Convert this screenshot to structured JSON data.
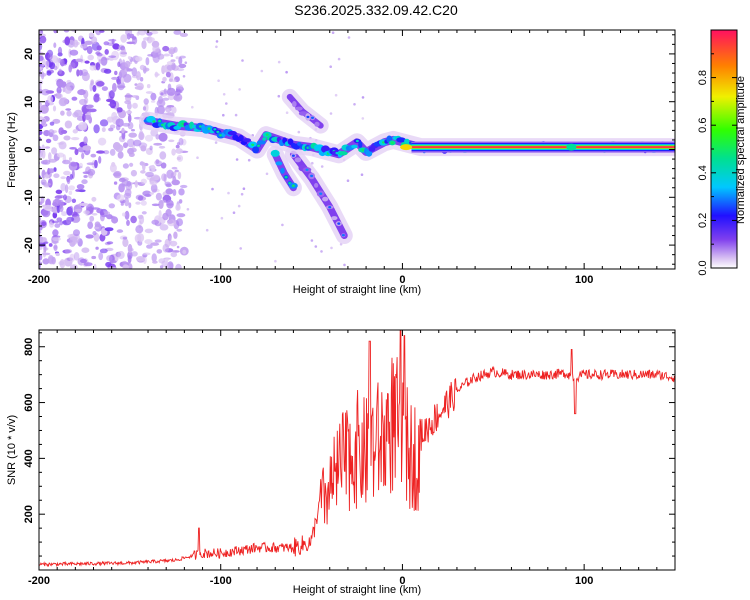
{
  "title": "S236.2025.332.09.42.C20",
  "chart_data": [
    {
      "type": "heatmap",
      "name": "spectrogram",
      "xlabel": "Height of straight line (km)",
      "ylabel": "Frequency (Hz)",
      "xlim": [
        -200,
        150
      ],
      "ylim": [
        -25,
        25
      ],
      "xticks": [
        -200,
        -100,
        0,
        100
      ],
      "yticks": [
        -20,
        -10,
        0,
        10,
        20
      ],
      "colorbar": {
        "label": "Normalized spectral amplitude",
        "range": [
          0,
          1
        ],
        "ticks": [
          0.0,
          0.2,
          0.4,
          0.6,
          0.8
        ]
      },
      "features": [
        {
          "name": "noise-cloud",
          "x_range": [
            -200,
            -135
          ],
          "freq_range": [
            -25,
            25
          ],
          "amplitude": 0.15
        },
        {
          "name": "main-trace",
          "points": [
            [
              -140,
              6
            ],
            [
              -125,
              5
            ],
            [
              -110,
              4.5
            ],
            [
              -100,
              3.5
            ],
            [
              -90,
              2.5
            ],
            [
              -80,
              0
            ],
            [
              -75,
              3
            ],
            [
              -60,
              1
            ],
            [
              -50,
              0.5
            ],
            [
              -35,
              -1
            ],
            [
              -25,
              1.5
            ],
            [
              -20,
              -0.5
            ],
            [
              -10,
              1.5
            ],
            [
              -5,
              2
            ],
            [
              0,
              1.5
            ],
            [
              10,
              0.5
            ],
            [
              150,
              0.5
            ]
          ],
          "amplitude": 0.35
        },
        {
          "name": "descending-branch",
          "points": [
            [
              -60,
              -1
            ],
            [
              -50,
              -6
            ],
            [
              -40,
              -12
            ],
            [
              -32,
              -18
            ]
          ],
          "amplitude": 0.1
        },
        {
          "name": "steep-branch",
          "points": [
            [
              -70,
              -1
            ],
            [
              -65,
              -5
            ],
            [
              -60,
              -8
            ]
          ],
          "amplitude": 0.3
        },
        {
          "name": "upper-branch",
          "points": [
            [
              -62,
              11
            ],
            [
              -55,
              8
            ],
            [
              -45,
              5
            ]
          ],
          "amplitude": 0.1
        },
        {
          "name": "carrier-line",
          "x_range": [
            5,
            150
          ],
          "freq": 0.5,
          "amplitude": 1.0
        }
      ]
    },
    {
      "type": "line",
      "name": "snr",
      "xlabel": "Height of straight line (km)",
      "ylabel": "SNR (10 * v/v)",
      "xlim": [
        -200,
        150
      ],
      "ylim": [
        0,
        860
      ],
      "xticks": [
        -200,
        -100,
        0,
        100
      ],
      "yticks": [
        200,
        400,
        600,
        800
      ],
      "color": "#ee2222",
      "x": [
        -200,
        -150,
        -125,
        -112,
        -110,
        -100,
        -80,
        -60,
        -50,
        -45,
        -40,
        -35,
        -30,
        -25,
        -20,
        -18,
        -15,
        -10,
        -5,
        0,
        5,
        10,
        15,
        20,
        25,
        30,
        35,
        40,
        50,
        60,
        70,
        80,
        90,
        93,
        95,
        100,
        110,
        120,
        130,
        140,
        150
      ],
      "y": [
        20,
        25,
        35,
        150,
        60,
        60,
        80,
        80,
        100,
        260,
        320,
        400,
        450,
        480,
        460,
        820,
        500,
        520,
        600,
        860,
        450,
        480,
        520,
        560,
        600,
        640,
        670,
        690,
        710,
        700,
        700,
        700,
        705,
        790,
        690,
        700,
        700,
        700,
        700,
        700,
        690
      ]
    }
  ]
}
